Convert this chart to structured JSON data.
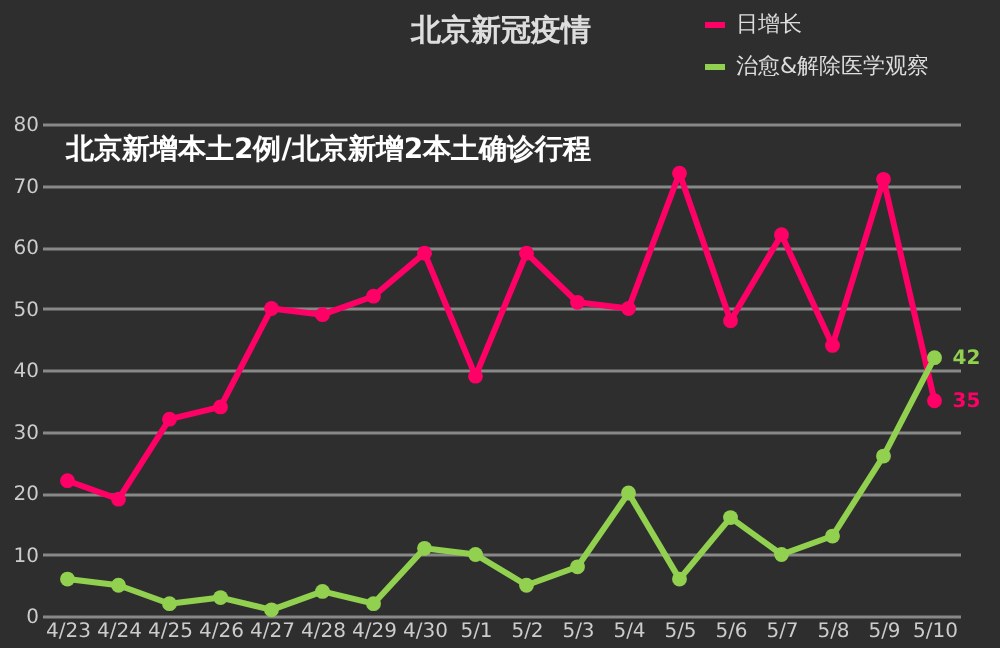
{
  "chart_data": {
    "type": "line",
    "title": "北京新冠疫情",
    "categories": [
      "4/23",
      "4/24",
      "4/25",
      "4/26",
      "4/27",
      "4/28",
      "4/29",
      "4/30",
      "5/1",
      "5/2",
      "5/3",
      "5/4",
      "5/5",
      "5/6",
      "5/7",
      "5/8",
      "5/9",
      "5/10"
    ],
    "series": [
      {
        "name": "日增长",
        "color": "#ff0066",
        "values": [
          22,
          19,
          32,
          34,
          50,
          49,
          52,
          59,
          39,
          59,
          51,
          50,
          72,
          48,
          62,
          44,
          71,
          35
        ],
        "value_labels": [
          null,
          null,
          null,
          null,
          null,
          null,
          null,
          null,
          null,
          null,
          null,
          null,
          null,
          null,
          null,
          null,
          null,
          "35"
        ]
      },
      {
        "name": "治愈&解除医学观察",
        "color": "#92d050",
        "values": [
          6,
          5,
          2,
          3,
          1,
          4,
          2,
          11,
          10,
          5,
          8,
          20,
          6,
          16,
          10,
          13,
          26,
          42
        ],
        "value_labels": [
          null,
          null,
          null,
          null,
          null,
          null,
          null,
          null,
          null,
          null,
          null,
          null,
          null,
          null,
          null,
          null,
          null,
          "42"
        ]
      }
    ],
    "ylim": [
      0,
      80
    ],
    "yticks": [
      0,
      10,
      20,
      30,
      40,
      50,
      60,
      70,
      80
    ],
    "grid": "y",
    "legend": "top right",
    "marker": "circle",
    "line_style": "solid",
    "annotations": [
      "北京新增本土2例/北京新增2本土确诊行程"
    ]
  }
}
